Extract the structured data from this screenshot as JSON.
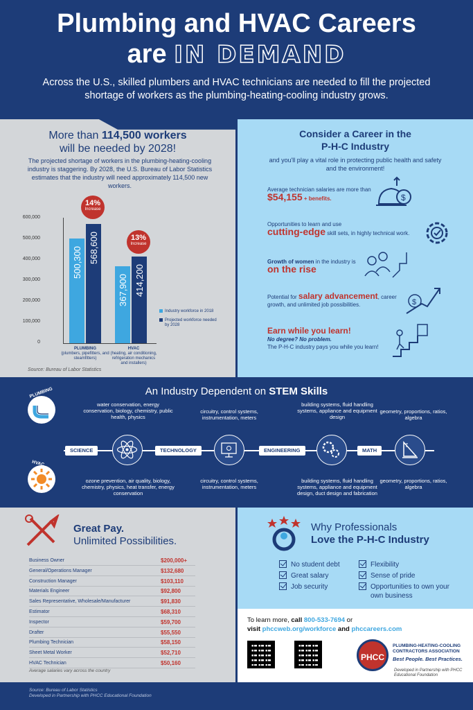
{
  "header": {
    "title_line1": "Plumbing and HVAC Careers",
    "title_are": "are",
    "title_highlight": "IN DEMAND",
    "intro": "Across the U.S., skilled plumbers and HVAC technicians are needed to fill the projected shortage of workers as the plumbing-heating-cooling industry grows."
  },
  "left": {
    "heading_pre": "More than ",
    "heading_bold": "114,500 workers",
    "heading_post": "will be needed by 2028!",
    "body": "The projected shortage of workers in the plumbing-heating-cooling industry is staggering. By 2028, the U.S. Bureau of Labor Statistics estimates that the industry will need approximately 114,500 new workers.",
    "source": "Source: Bureau of Labor Statistics"
  },
  "chart_data": {
    "type": "bar",
    "categories": [
      "PLUMBING",
      "HVAC"
    ],
    "category_sublabels": [
      "(plumbers, pipefitters, and steamfitters)",
      "(heating, air conditioning, refrigeration mechanics and installers)"
    ],
    "series": [
      {
        "name": "Industry workforce in 2018",
        "values": [
          500300,
          367900
        ],
        "labels": [
          "500,300",
          "367,900"
        ],
        "color": "#3ea7e0"
      },
      {
        "name": "Projected workforce needed by 2028",
        "values": [
          568600,
          414200
        ],
        "labels": [
          "568,600",
          "414,200"
        ],
        "color": "#1d3c78"
      }
    ],
    "yticks": [
      "600,000",
      "500,000",
      "400,000",
      "300,000",
      "200,000",
      "100,000",
      "0"
    ],
    "ylim": [
      0,
      600000
    ],
    "callouts": [
      {
        "pct": "14%",
        "label": "Increase"
      },
      {
        "pct": "13%",
        "label": "Increase"
      }
    ],
    "legend_position": "right"
  },
  "right": {
    "title_line1": "Consider a Career in the",
    "title_line2": "P-H-C Industry",
    "lead": "and you'll play a vital role in protecting public health and safety and the environment!",
    "f1_a": "Average technician salaries are more than",
    "f1_b": "$54,155",
    "f1_c": " + benefits.",
    "f2_a": "Opportunities to learn and use",
    "f2_b": "cutting-edge",
    "f2_c": " skill sets, in highly technical work.",
    "f3_a": "Growth of women",
    "f3_b": " in the industry is",
    "f3_c": "on the rise",
    "f4_a": "Potential for ",
    "f4_b": "salary advancement",
    "f4_c": ", career growth",
    "f4_d": ", and unlimited job possibilities.",
    "f5_a": "Earn while you learn!",
    "f5_b": "No degree? No problem.",
    "f5_c": "The P-H-C industry pays you while you learn!"
  },
  "stem": {
    "title_pre": "An Industry Dependent on ",
    "title_bold": "STEM Skills",
    "plumbing": "PLUMBING",
    "hvac": "HVAC",
    "labels": [
      "SCIENCE",
      "TECHNOLOGY",
      "ENGINEERING",
      "MATH"
    ],
    "top": [
      "water conservation, energy conservation, biology, chemistry, public health, physics",
      "circuitry, control systems, instrumentation, meters",
      "building systems, fluid handling systems, appliance and equipment design",
      "geometry, proportions, ratios, algebra"
    ],
    "bottom": [
      "ozone prevention, air quality, biology, chemistry, physics, heat transfer, energy conservation",
      "circuitry, control systems, instrumentation, meters",
      "building systems, fluid handling systems, appliance and equipment design, duct design and fabrication",
      "geometry, proportions, ratios, algebra"
    ]
  },
  "pay": {
    "title1": "Great Pay.",
    "title2": "Unlimited Possibilities.",
    "rows": [
      [
        "Business Owner",
        "$200,000+"
      ],
      [
        "General/Operations Manager",
        "$132,680"
      ],
      [
        "Construction Manager",
        "$103,110"
      ],
      [
        "Materials Engineer",
        "$92,800"
      ],
      [
        "Sales Representative, Wholesale/Manufacturer",
        "$91,830"
      ],
      [
        "Estimator",
        "$68,310"
      ],
      [
        "Inspector",
        "$59,700"
      ],
      [
        "Drafter",
        "$55,550"
      ],
      [
        "Plumbing Technician",
        "$58,150"
      ],
      [
        "Sheet Metal Worker",
        "$52,710"
      ],
      [
        "HVAC Technician",
        "$50,160"
      ]
    ],
    "note": "Average salaries vary across the country"
  },
  "why": {
    "title1": "Why Professionals",
    "title2": "Love the P-H-C Industry",
    "col1": [
      "No student debt",
      "Great salary",
      "Job security"
    ],
    "col2": [
      "Flexibility",
      "Sense of pride",
      "Opportunities to own your own business"
    ]
  },
  "contact": {
    "line1_pre": "To learn more, ",
    "line1_call": "call ",
    "phone": "800-533-7694",
    "line1_post": " or",
    "visit": "visit ",
    "site1": "phccweb.org/workforce",
    "and": " and ",
    "site2": "phccareers.com",
    "logo": "PHCC",
    "org1": "PLUMBING-HEATING-COOLING",
    "org2": "CONTRACTORS ASSOCIATION",
    "tagline": "Best People. Best Practices.",
    "partner": "Developed in Partnership with PHCC Educational Foundation"
  },
  "footer": {
    "source": "Source: Bureau of Labor Statistics",
    "partner": "Developed in Partnership with PHCC Educational Foundation"
  },
  "colors": {
    "navy": "#1d3c78",
    "light_blue": "#a7daf5",
    "gray": "#d3d6d9",
    "red": "#c0332d",
    "bar_light": "#3ea7e0"
  }
}
